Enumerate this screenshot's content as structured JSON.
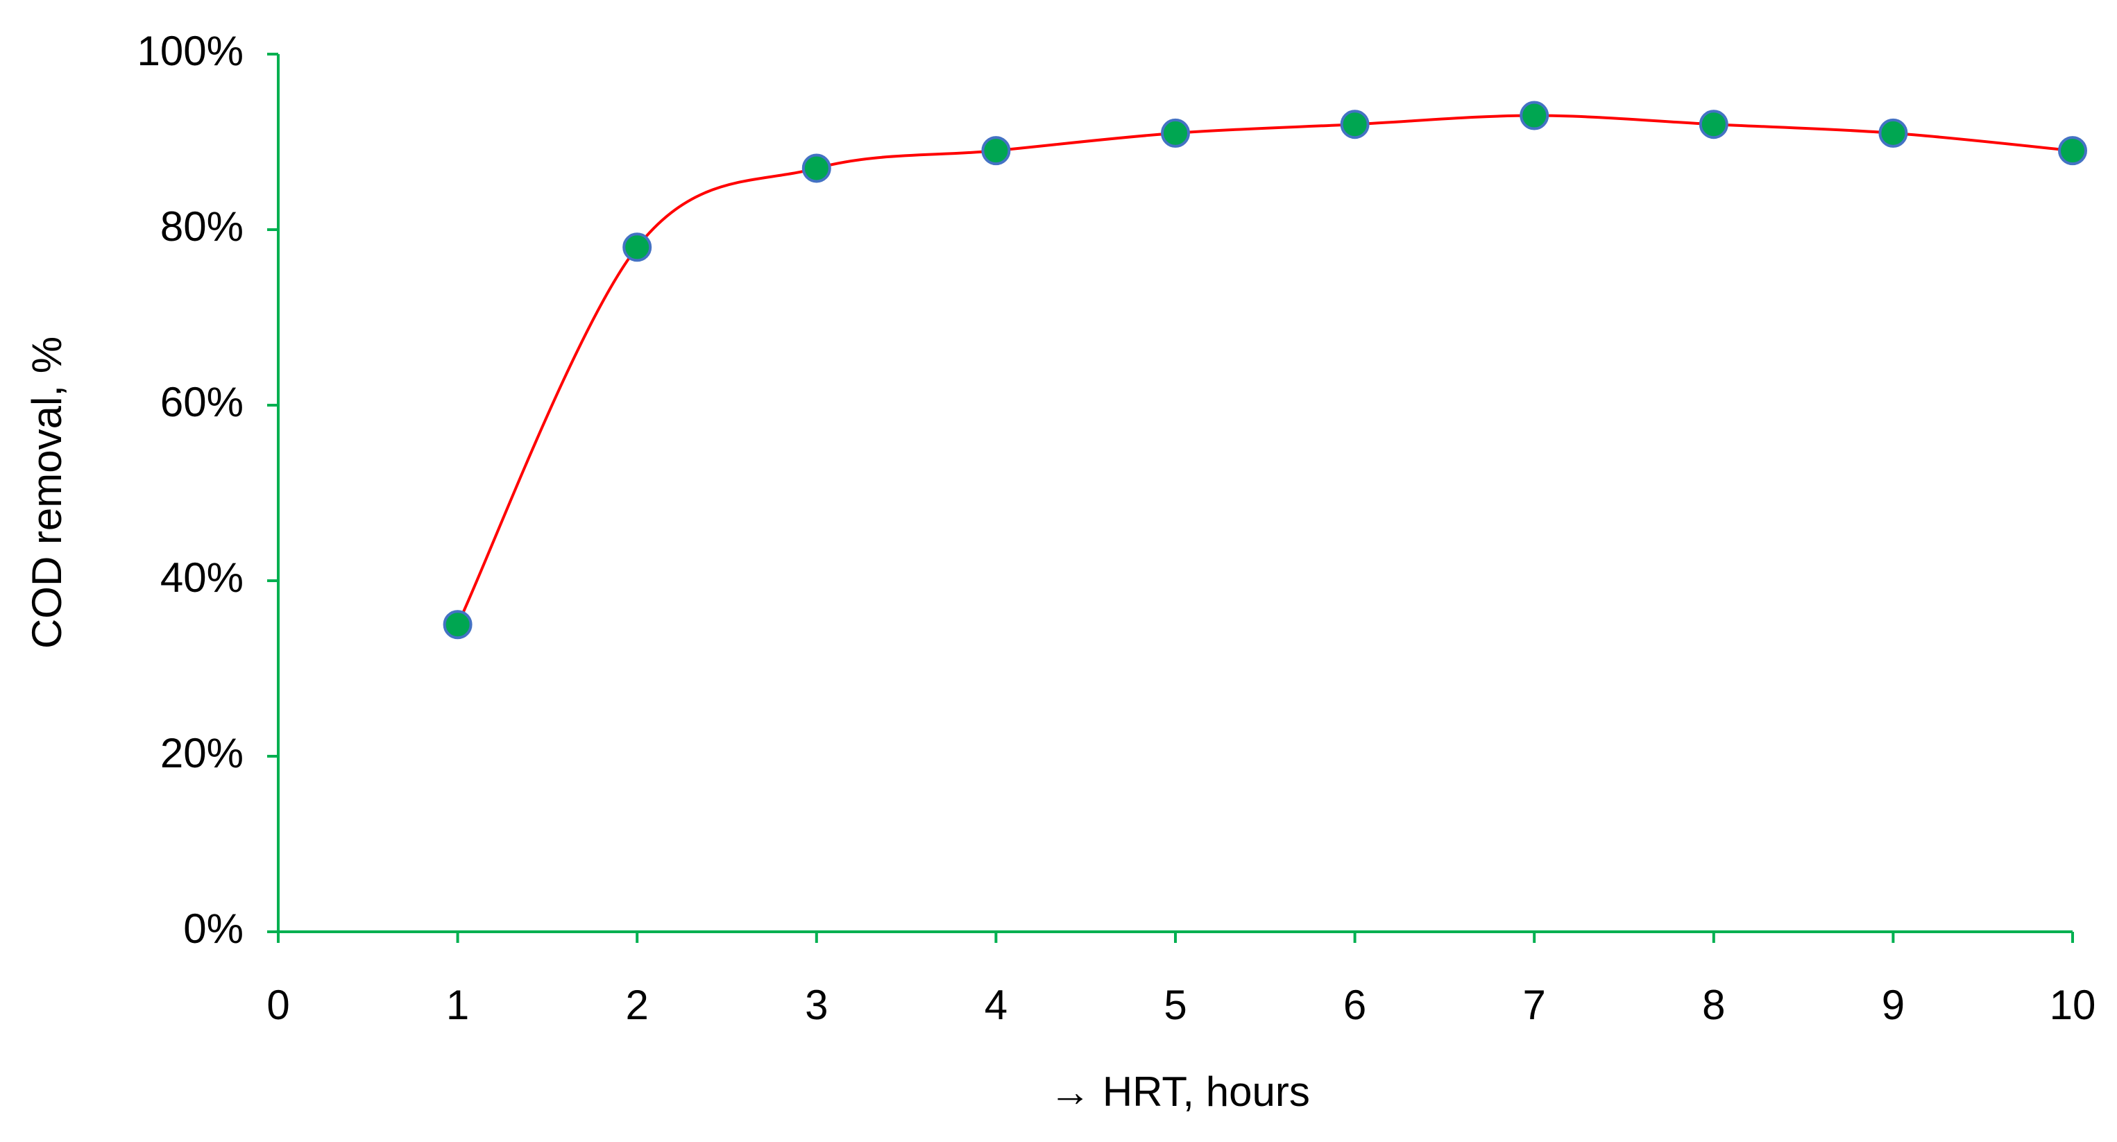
{
  "chart_data": {
    "type": "line",
    "x_label": "→ HRT, hours",
    "y_label": "COD removal, %",
    "x": [
      1,
      2,
      3,
      4,
      5,
      6,
      7,
      8,
      9,
      10
    ],
    "series": [
      {
        "color": "#ff0000",
        "marker_color": "#00a651",
        "marker_edge_color": "#4472c4",
        "values": [
          35,
          78,
          87,
          89,
          91,
          92,
          93,
          92,
          91,
          89
        ]
      }
    ],
    "smooth": true,
    "axis_color": "#00b050",
    "xlim": [
      0,
      10
    ],
    "xticks": [
      0,
      1,
      2,
      3,
      4,
      5,
      6,
      7,
      8,
      9,
      10
    ],
    "ylim": [
      0,
      100
    ],
    "yticks": [
      {
        "value": 0,
        "label": "0%"
      },
      {
        "value": 20,
        "label": "20%"
      },
      {
        "value": 40,
        "label": "40%"
      },
      {
        "value": 60,
        "label": "60%"
      },
      {
        "value": 80,
        "label": "80%"
      },
      {
        "value": 100,
        "label": "100%"
      }
    ],
    "grid": false
  }
}
